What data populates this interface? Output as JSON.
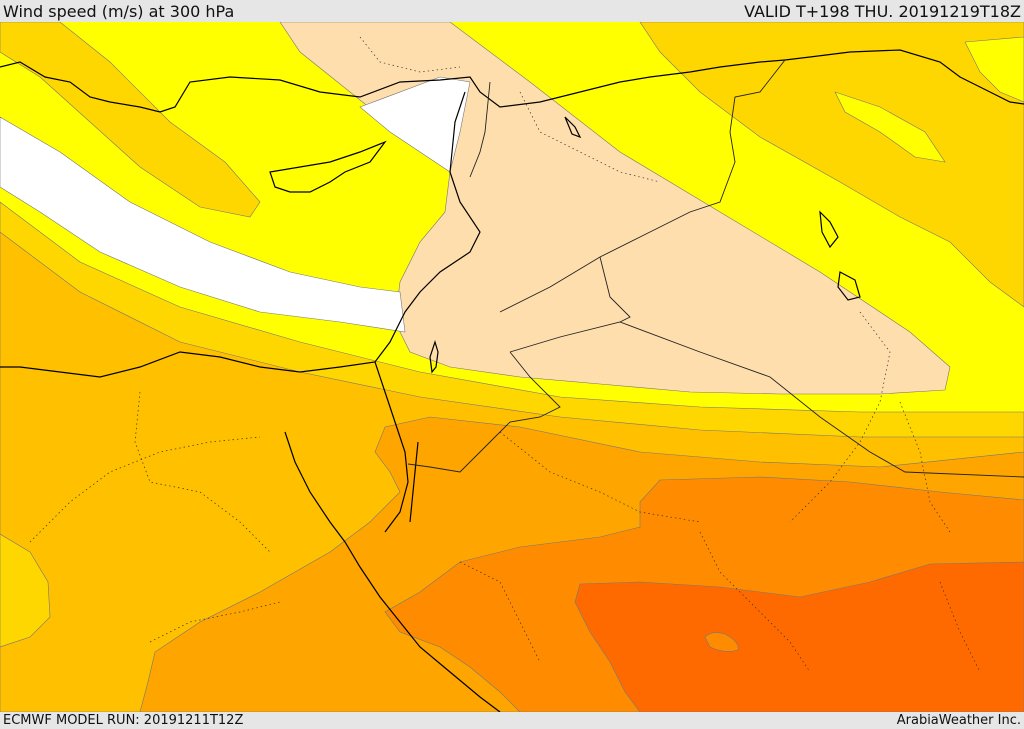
{
  "header": {
    "title": "Wind speed (m/s) at 300 hPa",
    "valid_time": "VALID T+198 THU. 20191219T18Z"
  },
  "footer": {
    "model_run": "ECMWF MODEL RUN: 20191211T12Z",
    "credit": "ArabiaWeather Inc."
  },
  "map": {
    "colors": {
      "band_white": "#ffffff",
      "band_yellow": "#ffff00",
      "band_gold": "#ffd700",
      "band_amber": "#ffc000",
      "band_orange_light": "#ffa500",
      "band_orange": "#ff8c00",
      "band_orange_dark": "#ff6a00",
      "band_peach": "#ffdead",
      "coastline": "#000000",
      "borders": "#333333"
    }
  }
}
